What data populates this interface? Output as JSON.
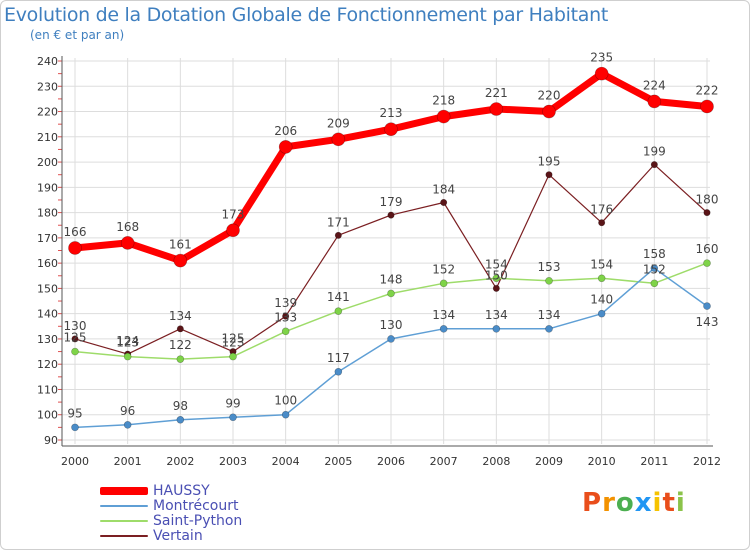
{
  "title": "Evolution de la Dotation Globale de Fonctionnement par Habitant",
  "subtitle": "(en € et par an)",
  "logo": {
    "letters": [
      "P",
      "r",
      "o",
      "x",
      "i",
      "t",
      "i"
    ],
    "colors": [
      "#e94e1b",
      "#f39200",
      "#4caf50",
      "#2196f3",
      "#f6c300",
      "#e94e1b",
      "#8bc34a"
    ]
  },
  "chart_data": {
    "type": "line",
    "x": [
      "2000",
      "2001",
      "2002",
      "2003",
      "2004",
      "2005",
      "2006",
      "2007",
      "2008",
      "2009",
      "2010",
      "2011",
      "2012"
    ],
    "ylim": [
      90,
      240
    ],
    "yticks": [
      "90",
      "100",
      "110",
      "120",
      "130",
      "140",
      "150",
      "160",
      "170",
      "180",
      "190",
      "200",
      "210",
      "220",
      "230",
      "240"
    ],
    "series": [
      {
        "name": "Vertain",
        "color": "#7b1f22",
        "marker": "#5a1417",
        "width": 1.2,
        "r": 3.2,
        "values": [
          130,
          124,
          134,
          125,
          139,
          171,
          179,
          184,
          150,
          195,
          176,
          199,
          180
        ],
        "labels": [
          "130",
          "124",
          "134",
          "125",
          "139",
          "171",
          "179",
          "184",
          "150",
          "195",
          "176",
          "199",
          "180"
        ]
      },
      {
        "name": "Saint-Python",
        "color": "#9edc6a",
        "marker": "#7ed348",
        "width": 1.5,
        "r": 3.5,
        "values": [
          125,
          123,
          122,
          123,
          133,
          141,
          148,
          152,
          154,
          153,
          154,
          152,
          160
        ],
        "labels": [
          "125",
          "123",
          "122",
          "123",
          "133",
          "141",
          "148",
          "152",
          "154",
          "153",
          "154",
          "152",
          "160"
        ]
      },
      {
        "name": "Montrécourt",
        "color": "#5f9fd5",
        "marker": "#4a8cc8",
        "width": 1.5,
        "r": 3.5,
        "values": [
          95,
          96,
          98,
          99,
          100,
          117,
          130,
          134,
          134,
          134,
          140,
          158,
          143
        ],
        "labels": [
          "95",
          "96",
          "98",
          "99",
          "100",
          "117",
          "130",
          "134",
          "134",
          "134",
          "140",
          "158",
          "143"
        ]
      },
      {
        "name": "HAUSSY",
        "color": "#ff0000",
        "marker": "#ff0000",
        "width": 7,
        "r": 6.5,
        "values": [
          166,
          168,
          161,
          173,
          206,
          209,
          213,
          218,
          221,
          220,
          235,
          224,
          222
        ],
        "labels": [
          "166",
          "168",
          "161",
          "173",
          "206",
          "209",
          "213",
          "218",
          "221",
          "220",
          "235",
          "224",
          "222"
        ]
      }
    ]
  },
  "legend": [
    {
      "label": "HAUSSY",
      "color": "#ff0000",
      "thickness": 8
    },
    {
      "label": "Montrécourt",
      "color": "#5f9fd5",
      "thickness": 2
    },
    {
      "label": "Saint-Python",
      "color": "#9edc6a",
      "thickness": 2
    },
    {
      "label": "Vertain",
      "color": "#7b1f22",
      "thickness": 2
    }
  ]
}
